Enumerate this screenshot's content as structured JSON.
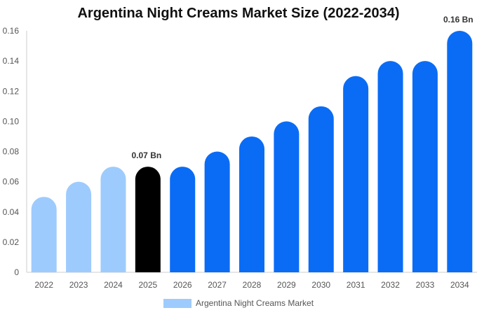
{
  "chart_data": {
    "type": "bar",
    "title": "Argentina Night Creams Market Size (2022-2034)",
    "categories": [
      "2022",
      "2023",
      "2024",
      "2025",
      "2026",
      "2027",
      "2028",
      "2029",
      "2030",
      "2031",
      "2032",
      "2033",
      "2034"
    ],
    "series": [
      {
        "name": "Argentina Night Creams Market",
        "values": [
          0.05,
          0.06,
          0.07,
          0.07,
          0.07,
          0.08,
          0.09,
          0.1,
          0.11,
          0.13,
          0.14,
          0.14,
          0.16
        ]
      }
    ],
    "ylim": [
      0,
      0.16
    ],
    "yticks": [
      "0",
      "0.02",
      "0.04",
      "0.06",
      "0.08",
      "0.10",
      "0.12",
      "0.14",
      "0.16"
    ],
    "data_labels": [
      {
        "category": "2025",
        "text": "0.07 Bn"
      },
      {
        "category": "2034",
        "text": "0.16 Bn"
      }
    ],
    "bar_colors": [
      "#9ecbfd",
      "#9ecbfd",
      "#9ecbfd",
      "#000000",
      "#0a6cf5",
      "#0a6cf5",
      "#0a6cf5",
      "#0a6cf5",
      "#0a6cf5",
      "#0a6cf5",
      "#0a6cf5",
      "#0a6cf5",
      "#0a6cf5"
    ],
    "legend": {
      "label": "Argentina Night Creams Market",
      "color": "#9ecbfd",
      "position": "bottom"
    },
    "grid": false
  }
}
